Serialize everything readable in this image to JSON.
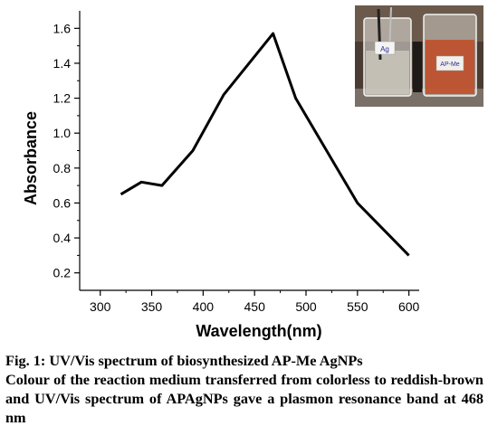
{
  "chart_data": {
    "type": "line",
    "xlabel": "Wavelength(nm)",
    "ylabel": "Absorbance",
    "xlim": [
      280,
      610
    ],
    "ylim": [
      0.1,
      1.7
    ],
    "xticks": [
      "300",
      "350",
      "400",
      "450",
      "500",
      "550",
      "600"
    ],
    "yticks": [
      "0.2",
      "0.4",
      "0.6",
      "0.8",
      "1.0",
      "1.2",
      "1.4",
      "1.6"
    ],
    "series": [
      {
        "x": [
          320,
          340,
          360,
          390,
          420,
          468,
          490,
          550,
          600
        ],
        "y": [
          0.65,
          0.72,
          0.7,
          0.9,
          1.22,
          1.57,
          1.2,
          0.6,
          0.3
        ]
      }
    ],
    "grid": false,
    "line_color": "#000000"
  },
  "inset_photo": {
    "left_beaker_label": "Ag",
    "right_beaker_label": "AP-Me",
    "left_liquid_color": "#c9c6bb",
    "right_liquid_color": "#c0502a"
  },
  "caption": {
    "title": "Fig. 1: UV/Vis spectrum of biosynthesized AP-Me AgNPs",
    "body": "Colour of the reaction medium transferred from colorless to reddish-brown and UV/Vis spectrum of APAgNPs gave a plasmon resonance band at 468 nm"
  }
}
